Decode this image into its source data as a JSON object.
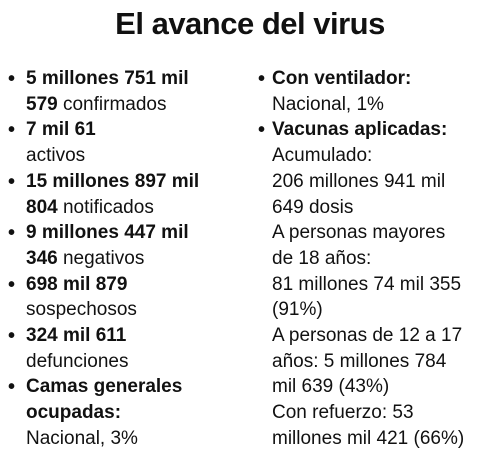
{
  "title": "El avance del virus",
  "left_items": [
    {
      "bold": "5 millones 751 mil",
      "bold2": "579",
      "normal": " confirmados"
    },
    {
      "bold": "7 mil 61",
      "normal": "activos"
    },
    {
      "bold": "15 millones 897 mil",
      "bold2": "804",
      "normal": " notificados"
    },
    {
      "bold": "9 millones 447 mil",
      "bold2": "346",
      "normal": " negativos"
    },
    {
      "bold": "698 mil 879",
      "normal": "sospechosos"
    },
    {
      "bold": "324 mil 611",
      "normal": "defunciones"
    },
    {
      "bold": "Camas generales",
      "bold2": "ocupadas:",
      "normal": "Nacional, 3%"
    }
  ],
  "right_items": [
    {
      "bold": "Con ventilador:",
      "lines": [
        "Nacional, 1%"
      ]
    },
    {
      "bold": "Vacunas aplicadas:",
      "lines": [
        "Acumulado:",
        "206 millones 941 mil",
        "649 dosis",
        "A personas mayores",
        "de 18 años:",
        "81 millones 74 mil 355",
        "(91%)",
        "A personas de 12 a 17",
        "años: 5 millones 784",
        "mil 639 (43%)",
        "Con refuerzo: 53",
        "millones mil 421 (66%)"
      ]
    }
  ],
  "bullet": "•"
}
